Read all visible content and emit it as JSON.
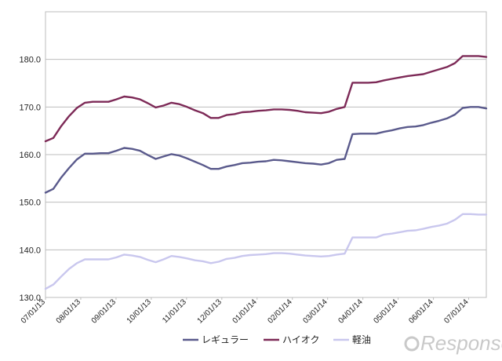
{
  "chart_data": {
    "type": "line",
    "y_ticks": [
      "130.0",
      "140.0",
      "150.0",
      "160.0",
      "170.0",
      "180.0"
    ],
    "ylim": [
      130,
      190
    ],
    "x_tick_labels": [
      "07/01/13",
      "08/01/13",
      "09/01/13",
      "10/01/13",
      "11/01/13",
      "12/01/13",
      "01/01/14",
      "02/01/14",
      "03/01/14",
      "04/01/14",
      "05/01/14",
      "06/01/14",
      "07/01/14"
    ],
    "grid": true,
    "legend_position": "bottom",
    "series": [
      {
        "name": "レギュラー",
        "color": "#5a5a8c",
        "values": [
          152.0,
          152.8,
          155.2,
          157.2,
          159.0,
          160.2,
          160.2,
          160.3,
          160.3,
          160.8,
          161.4,
          161.2,
          160.8,
          159.9,
          159.1,
          159.6,
          160.1,
          159.8,
          159.2,
          158.5,
          157.8,
          157.0,
          157.0,
          157.5,
          157.8,
          158.2,
          158.3,
          158.5,
          158.6,
          158.9,
          158.8,
          158.6,
          158.4,
          158.2,
          158.1,
          157.9,
          158.2,
          158.9,
          159.1,
          164.3,
          164.4,
          164.4,
          164.4,
          164.8,
          165.1,
          165.5,
          165.8,
          165.9,
          166.2,
          166.7,
          167.1,
          167.6,
          168.4,
          169.8,
          170.0,
          170.0,
          169.7
        ]
      },
      {
        "name": "ハイオク",
        "color": "#7d2a57",
        "values": [
          162.8,
          163.5,
          166.0,
          168.1,
          169.8,
          170.9,
          171.1,
          171.1,
          171.1,
          171.6,
          172.2,
          172.0,
          171.6,
          170.8,
          169.9,
          170.3,
          170.9,
          170.6,
          170.0,
          169.3,
          168.7,
          167.7,
          167.7,
          168.3,
          168.5,
          168.9,
          169.0,
          169.2,
          169.3,
          169.5,
          169.5,
          169.4,
          169.2,
          168.9,
          168.8,
          168.7,
          169.0,
          169.6,
          170.0,
          175.1,
          175.1,
          175.1,
          175.2,
          175.6,
          175.9,
          176.2,
          176.5,
          176.7,
          176.9,
          177.4,
          177.9,
          178.4,
          179.2,
          180.7,
          180.7,
          180.7,
          180.5
        ]
      },
      {
        "name": "軽油",
        "color": "#c9c7ee",
        "values": [
          131.8,
          132.7,
          134.4,
          136.0,
          137.2,
          138.0,
          138.0,
          138.0,
          138.0,
          138.4,
          139.0,
          138.8,
          138.5,
          137.9,
          137.4,
          138.0,
          138.7,
          138.5,
          138.2,
          137.8,
          137.6,
          137.2,
          137.5,
          138.1,
          138.3,
          138.7,
          138.9,
          139.0,
          139.1,
          139.3,
          139.3,
          139.2,
          139.0,
          138.8,
          138.7,
          138.6,
          138.7,
          139.0,
          139.2,
          142.6,
          142.6,
          142.6,
          142.6,
          143.2,
          143.4,
          143.7,
          144.0,
          144.1,
          144.4,
          144.8,
          145.1,
          145.5,
          146.3,
          147.5,
          147.5,
          147.4,
          147.4
        ]
      }
    ]
  },
  "watermark": "Response."
}
